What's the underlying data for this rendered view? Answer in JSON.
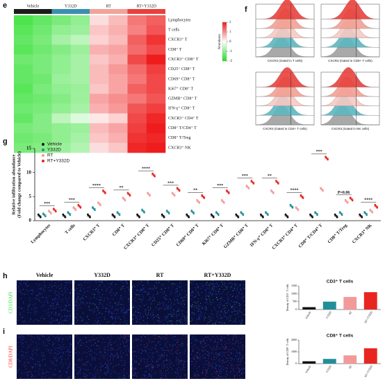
{
  "heatmap": {
    "label": "e",
    "groups": [
      {
        "name": "Vehicle",
        "color": "#1c1c1c"
      },
      {
        "name": "Y332D",
        "color": "#3b8fb0"
      },
      {
        "name": "RT",
        "color": "#f2a39a"
      },
      {
        "name": "RT+Y332D",
        "color": "#e8413c"
      }
    ],
    "rows": [
      "Lymphocytes",
      "T cells",
      "CXCR3⁺ T",
      "CD8⁺ T",
      "CXCR3⁺ CD8⁺ T",
      "CD25⁺ CD8⁺ T",
      "CD69⁺ CD8⁺ T",
      "Ki67⁺ CD8⁺ T",
      "GZMB⁺ CD8⁺ T",
      "IFN-γ⁺ CD8⁺ T",
      "CXCR3⁺ CD4⁺ T",
      "CD8⁺ T/CD4⁺ T",
      "CD8⁺ T/Treg",
      "CXCR3⁺ NK"
    ],
    "values": [
      [
        -1.6,
        -1.4,
        -1.2,
        -1.0,
        0.3,
        0.6,
        1.2,
        1.4
      ],
      [
        -1.5,
        -1.3,
        -1.0,
        -0.9,
        0.5,
        0.7,
        1.1,
        1.5
      ],
      [
        -1.4,
        -1.2,
        -0.8,
        -0.6,
        0.4,
        0.6,
        1.4,
        1.8
      ],
      [
        -1.5,
        -1.3,
        -1.1,
        -0.9,
        0.7,
        0.8,
        1.3,
        1.6
      ],
      [
        -1.3,
        -1.2,
        -1.0,
        -0.8,
        0.5,
        0.7,
        1.6,
        2.0
      ],
      [
        -1.4,
        -1.2,
        -1.0,
        -0.8,
        0.6,
        0.9,
        1.3,
        1.7
      ],
      [
        -1.4,
        -1.3,
        -0.9,
        -0.8,
        0.6,
        0.8,
        1.2,
        1.6
      ],
      [
        -1.5,
        -1.2,
        -1.0,
        -0.9,
        0.5,
        0.8,
        1.4,
        1.6
      ],
      [
        -1.4,
        -1.3,
        -1.1,
        -0.9,
        0.8,
        1.0,
        1.2,
        1.5
      ],
      [
        -1.3,
        -1.2,
        -1.0,
        -0.8,
        0.7,
        0.9,
        1.5,
        1.7
      ],
      [
        -1.4,
        -1.1,
        -0.6,
        -0.3,
        0.2,
        0.4,
        1.6,
        1.9
      ],
      [
        -1.2,
        -1.1,
        -1.0,
        -0.9,
        0.6,
        0.8,
        1.7,
        2.0
      ],
      [
        -1.3,
        -1.2,
        -1.0,
        -0.8,
        0.5,
        0.7,
        1.8,
        1.9
      ],
      [
        -1.2,
        -1.1,
        -0.9,
        -0.7,
        0.3,
        0.5,
        1.9,
        2.0
      ]
    ],
    "colorbar_title": "Abundance",
    "colorbar_ticks": [
      2,
      1,
      0,
      -1,
      -2
    ],
    "colors": {
      "low": "#22dd22",
      "mid": "#ffffff",
      "high": "#ee1c1c"
    }
  },
  "histograms": {
    "label": "f",
    "panels": [
      "CXCR3 (Gated in T cells)",
      "CXCR3 (Gated in CD8+ T cells)",
      "CXCR3 (Gated in CD4+ T cells)",
      "CXCR3 (Gated in NK cells)"
    ],
    "layer_colors": [
      "#e8413c",
      "#f2a093",
      "#f7c9c3",
      "#5cb8c0",
      "#a0a0a0"
    ]
  },
  "chart_data": {
    "type": "dot",
    "label": "g",
    "ylabel": [
      "Relative infiltration abundance",
      "(Fold change compared to Vehicle)"
    ],
    "categories": [
      "Lymphocytes",
      "T cells",
      "CXCR3⁺ T",
      "CD8⁺ T",
      "CXCR3⁺ CD8⁺ T",
      "CD25⁺ CD8⁺ T",
      "CD69⁺ CD8⁺ T",
      "Ki67⁺ CD8⁺ T",
      "GZMB⁺ CD8⁺ T",
      "IFN-γ⁺ CD8⁺ T",
      "CXCR3⁺ CD4⁺ T",
      "CD8⁺ T/CD4⁺ T",
      "CD8⁺ T/Treg",
      "CXCR3⁺ NK"
    ],
    "series": [
      {
        "name": "Vehicle",
        "color": "#111111",
        "values": [
          1,
          1,
          1,
          1,
          1,
          1,
          1,
          1,
          1,
          1,
          1,
          1,
          1,
          1
        ]
      },
      {
        "name": "Y332D",
        "color": "#1f8f9a",
        "values": [
          1.2,
          1.5,
          2.5,
          1.5,
          2,
          1.8,
          1.8,
          1.5,
          1.5,
          1.5,
          3,
          1.5,
          1.5,
          1.5
        ]
      },
      {
        "name": "RT",
        "color": "#f29a9a",
        "values": [
          1.8,
          2.5,
          3.5,
          4.5,
          5.5,
          5.5,
          4,
          4,
          7,
          6,
          2.5,
          6.5,
          4,
          2
        ]
      },
      {
        "name": "RT+Y332D",
        "color": "#e8251f",
        "values": [
          2.2,
          3,
          6,
          5.5,
          9.5,
          6.5,
          5,
          6,
          8,
          8,
          5,
          13,
          4.5,
          3
        ]
      }
    ],
    "significance": [
      "***",
      "***",
      "****",
      "**",
      "****",
      "***",
      "**",
      "***",
      "***",
      "**",
      "****",
      "***",
      "P=0.06",
      "****"
    ],
    "ylim": [
      0,
      15
    ],
    "yticks": [
      0,
      5,
      10,
      15
    ]
  },
  "images": {
    "label_h": "h",
    "label_i": "i",
    "columns": [
      "Vehicle",
      "Y332D",
      "RT",
      "RT+Y332D"
    ],
    "rows": [
      "CD3/DAPI",
      "CD8/DAPI"
    ]
  },
  "bar_charts": [
    {
      "type": "bar",
      "title": "CD3⁺ T cells",
      "ylabel": "Density of CD3⁺ T cells",
      "categories": [
        "Vehicle",
        "Y332D",
        "RT",
        "RT+Y332D"
      ],
      "values": [
        150,
        500,
        800,
        1100
      ],
      "colors": [
        "#111111",
        "#1f8f9a",
        "#f29a9a",
        "#e8251f"
      ],
      "ylim": [
        0,
        1500
      ],
      "yticks": [
        0,
        500,
        1000,
        1500
      ]
    },
    {
      "type": "bar",
      "title": "CD8⁺ T cells",
      "ylabel": "Density of CD8⁺ T cells",
      "categories": [
        "Vehicle",
        "Y332D",
        "RT",
        "RT+Y332D"
      ],
      "values": [
        200,
        400,
        700,
        1300
      ],
      "colors": [
        "#111111",
        "#1f8f9a",
        "#f29a9a",
        "#e8251f"
      ],
      "ylim": [
        0,
        2000
      ],
      "yticks": [
        0,
        1000,
        2000
      ]
    }
  ]
}
